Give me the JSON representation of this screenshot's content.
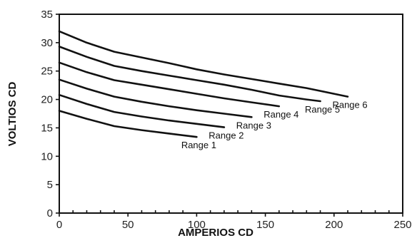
{
  "chart_data": {
    "type": "line",
    "xlabel": "AMPERIOS CD",
    "ylabel": "VOLTIOS CD",
    "xlim": [
      0,
      250
    ],
    "ylim": [
      0,
      35
    ],
    "xticks": [
      "0",
      "50",
      "100",
      "150",
      "200",
      "250"
    ],
    "yticks": [
      "0",
      "5",
      "10",
      "15",
      "20",
      "25",
      "30",
      "35"
    ],
    "grid": false,
    "line_color": "#111111",
    "series": [
      {
        "name": "Range 1",
        "x": [
          0,
          20,
          40,
          60,
          80,
          100
        ],
        "y": [
          18.0,
          16.6,
          15.3,
          14.6,
          14.0,
          13.4
        ]
      },
      {
        "name": "Range 2",
        "x": [
          0,
          20,
          40,
          60,
          80,
          100,
          120
        ],
        "y": [
          20.8,
          19.2,
          17.8,
          17.0,
          16.3,
          15.7,
          15.1
        ]
      },
      {
        "name": "Range 3",
        "x": [
          0,
          20,
          40,
          60,
          80,
          100,
          120,
          140
        ],
        "y": [
          23.5,
          21.9,
          20.5,
          19.6,
          18.8,
          18.1,
          17.5,
          16.9
        ]
      },
      {
        "name": "Range 4",
        "x": [
          0,
          20,
          40,
          60,
          80,
          100,
          120,
          140,
          160
        ],
        "y": [
          26.5,
          24.8,
          23.4,
          22.6,
          21.8,
          21.0,
          20.2,
          19.5,
          18.8
        ]
      },
      {
        "name": "Range 5",
        "x": [
          0,
          20,
          40,
          60,
          80,
          100,
          120,
          140,
          160,
          180,
          190
        ],
        "y": [
          29.3,
          27.5,
          25.9,
          25.0,
          24.2,
          23.4,
          22.6,
          21.7,
          20.7,
          20.0,
          19.7
        ]
      },
      {
        "name": "Range 6",
        "x": [
          0,
          20,
          40,
          60,
          80,
          100,
          120,
          140,
          160,
          180,
          200,
          210
        ],
        "y": [
          32.0,
          30.0,
          28.4,
          27.4,
          26.4,
          25.3,
          24.4,
          23.6,
          22.8,
          22.0,
          21.0,
          20.5
        ]
      }
    ]
  }
}
